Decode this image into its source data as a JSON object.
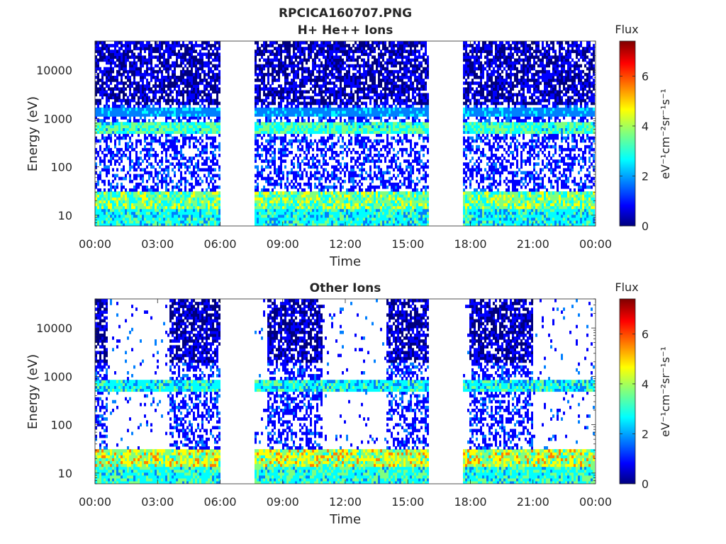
{
  "figure": {
    "title_line1": "RPCICA160707.PNG",
    "title_line2": "H+ He++ Ions"
  },
  "colormap": [
    "#00007f",
    "#0000ff",
    "#007fff",
    "#00ffff",
    "#7fff7f",
    "#ffff00",
    "#ff7f00",
    "#ff0000",
    "#7f0000"
  ],
  "chart_data": [
    {
      "type": "heatmap",
      "title": "H+ He++ Ions",
      "xlabel": "Time",
      "ylabel": "Energy (eV)",
      "x_ticks": [
        "00:00",
        "03:00",
        "06:00",
        "09:00",
        "12:00",
        "15:00",
        "18:00",
        "21:00",
        "00:00"
      ],
      "x_range_hours": [
        0,
        24
      ],
      "y_scale": "log",
      "y_ticks": [
        10,
        100,
        1000,
        10000
      ],
      "y_tick_labels": [
        "10",
        "100",
        "1000",
        "10000"
      ],
      "y_range": [
        6,
        40000
      ],
      "colorbar": {
        "title": "Flux",
        "label": "eV⁻¹cm⁻²sr⁻¹s⁻¹",
        "range": [
          0,
          7.4
        ],
        "ticks": [
          0,
          2,
          4,
          6
        ]
      },
      "data_segments_hours": [
        [
          0,
          6.0
        ],
        [
          7.65,
          16.0
        ],
        [
          17.6,
          24
        ]
      ],
      "features": [
        {
          "energy_eV": 700,
          "band": [
            520,
            900
          ],
          "flux": 3.2
        },
        {
          "energy_eV": 1300,
          "band": [
            1050,
            1700
          ],
          "flux": 2.0
        },
        {
          "energy_eV": 20,
          "band": [
            14,
            30
          ],
          "flux": 3.6
        },
        {
          "energy_eV": 9,
          "band": [
            6,
            13
          ],
          "flux": 2.8
        }
      ]
    },
    {
      "type": "heatmap",
      "title": "Other Ions",
      "xlabel": "Time",
      "ylabel": "Energy (eV)",
      "x_ticks": [
        "00:00",
        "03:00",
        "06:00",
        "09:00",
        "12:00",
        "15:00",
        "18:00",
        "21:00",
        "00:00"
      ],
      "x_range_hours": [
        0,
        24
      ],
      "y_scale": "log",
      "y_ticks": [
        10,
        100,
        1000,
        10000
      ],
      "y_tick_labels": [
        "10",
        "100",
        "1000",
        "10000"
      ],
      "y_range": [
        6,
        40000
      ],
      "colorbar": {
        "title": "Flux",
        "label": "eV⁻¹cm⁻²sr⁻¹s⁻¹",
        "range": [
          0,
          7.4
        ],
        "ticks": [
          0,
          2,
          4,
          6
        ]
      },
      "data_segments_hours": [
        [
          0,
          6.0
        ],
        [
          7.65,
          16.0
        ],
        [
          17.6,
          24
        ]
      ],
      "dense_intervals_hours": [
        [
          0,
          0.65
        ],
        [
          3.6,
          6.0
        ],
        [
          8.3,
          10.95
        ],
        [
          14.0,
          16.0
        ],
        [
          18.0,
          21.0
        ]
      ],
      "features": [
        {
          "energy_eV": 650,
          "band": [
            520,
            820
          ],
          "flux": 2.8
        },
        {
          "energy_eV": 20,
          "band": [
            14,
            32
          ],
          "flux": 4.2
        },
        {
          "energy_eV": 9,
          "band": [
            6,
            13
          ],
          "flux": 3.0
        }
      ]
    }
  ]
}
